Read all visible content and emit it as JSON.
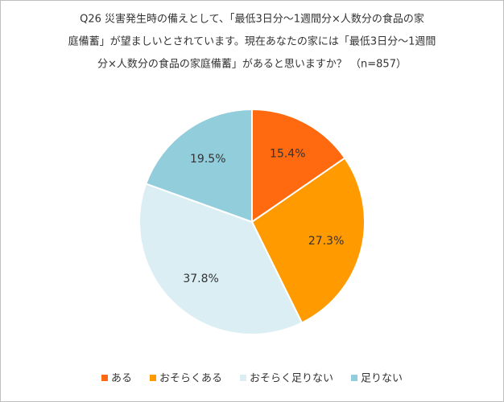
{
  "chart_data": {
    "type": "pie",
    "title": [
      "Q26 災害発生時の備えとして、「最低3日分～1週間分×人数分の食品の家",
      "庭備蓄」が望ましいとされています。現在あなたの家には「最低3日分～1週間",
      "分×人数分の食品の家庭備蓄」があると思いますか？ （n=857）"
    ],
    "categories": [
      "ある",
      "おそらくある",
      "おそらく足りない",
      "足りない"
    ],
    "values": [
      15.4,
      27.3,
      37.8,
      19.5
    ],
    "value_labels": [
      "15.4%",
      "27.3%",
      "37.8%",
      "19.5%"
    ],
    "colors": [
      "#ff6a10",
      "#ff9a00",
      "#daeef3",
      "#92cddc"
    ],
    "legend": "bottom"
  }
}
